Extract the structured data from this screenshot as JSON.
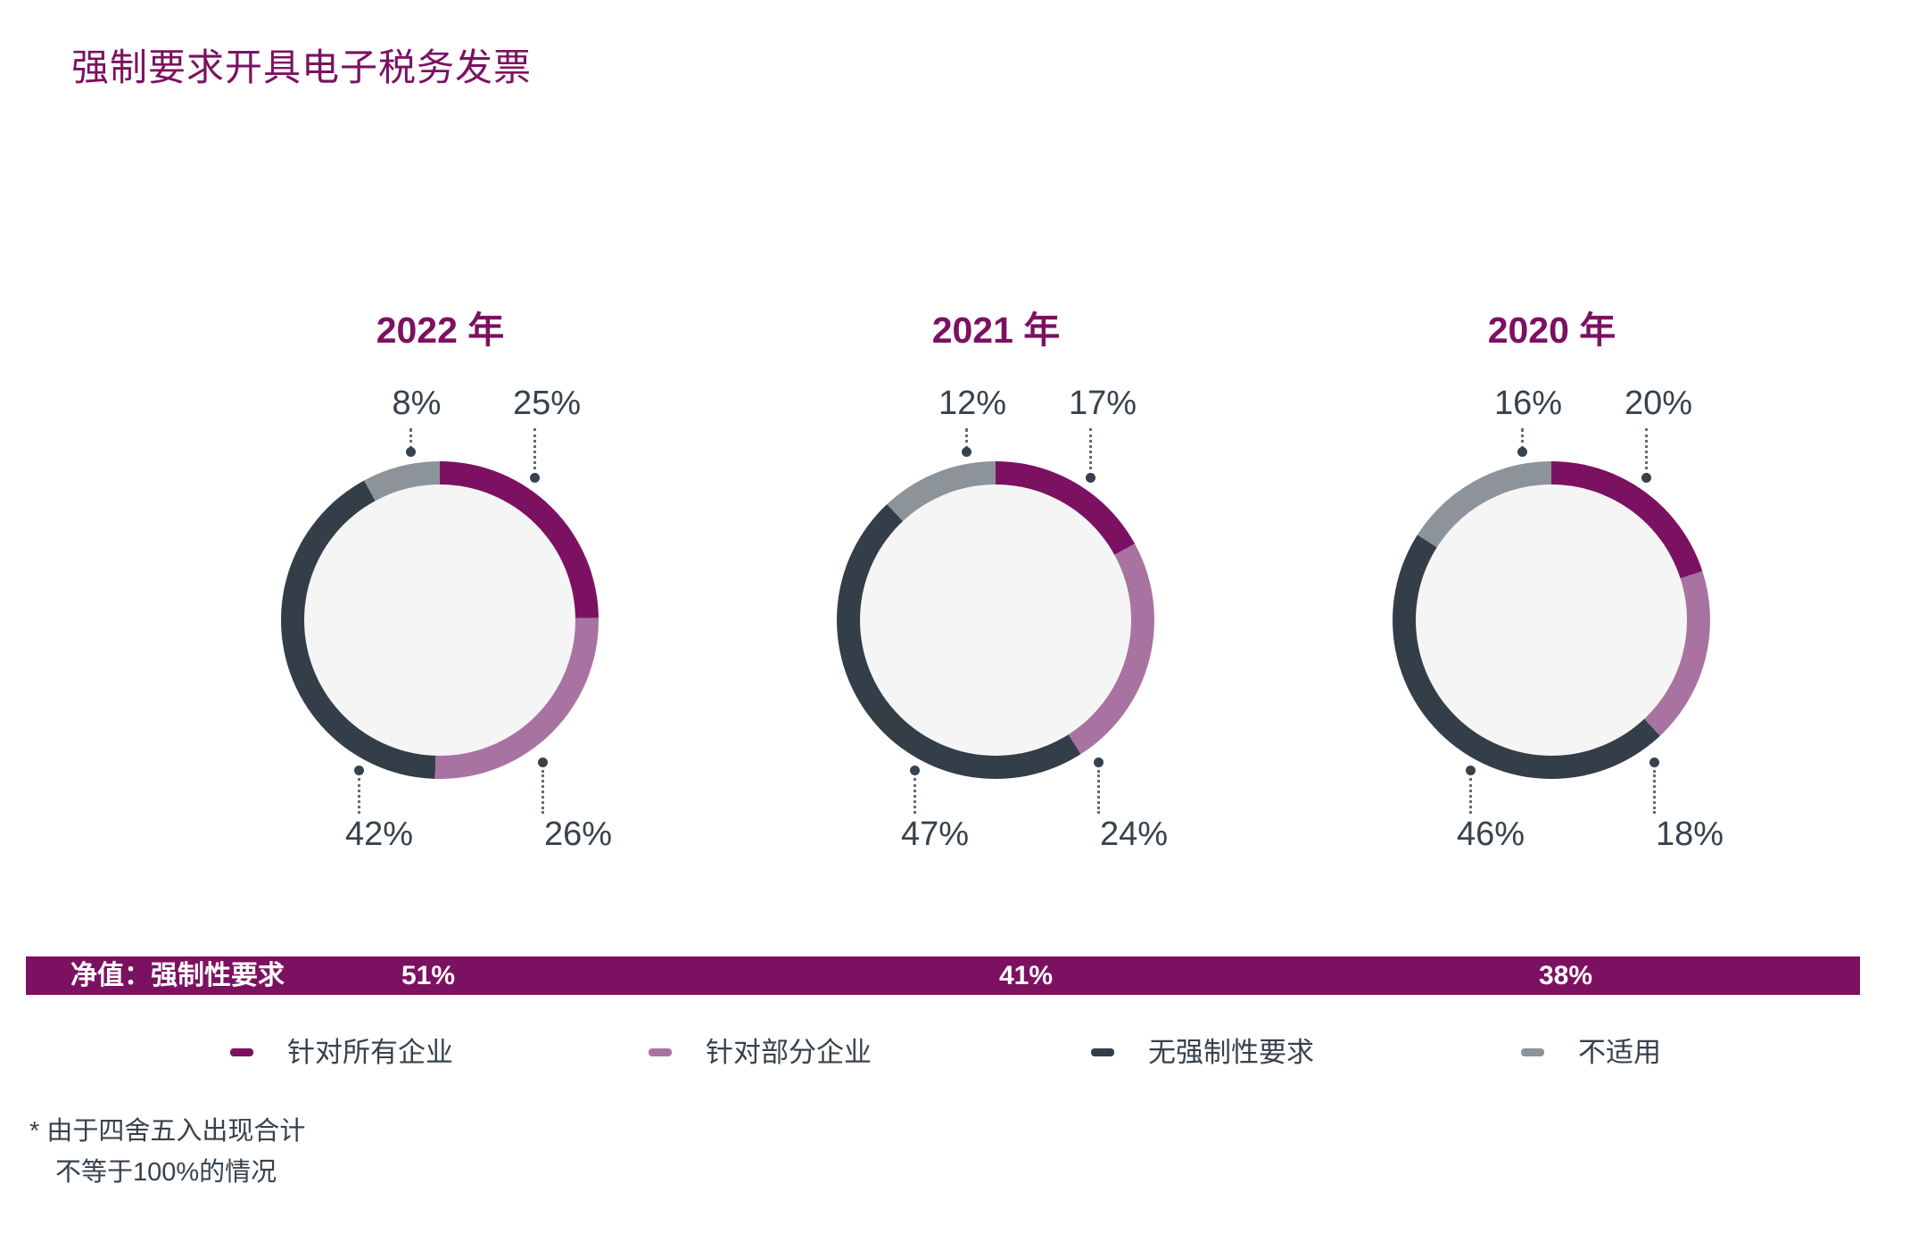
{
  "title": "强制要求开具电子税务发票",
  "chart_data": {
    "type": "pie",
    "subtype": "donut",
    "title": "强制要求开具电子税务发票",
    "legend_position": "bottom",
    "categories": [
      "针对所有企业",
      "针对部分企业",
      "无强制性要求",
      "不适用"
    ],
    "colors": [
      "#7C1161",
      "#A873A1",
      "#333E48",
      "#8C9399"
    ],
    "hole_color": "#F5F5F6",
    "charts": [
      {
        "label": "2022 年",
        "values": [
          25,
          26,
          42,
          8
        ],
        "value_labels": [
          "25%",
          "26%",
          "42%",
          "8%"
        ],
        "net_value": "51%"
      },
      {
        "label": "2021 年",
        "values": [
          17,
          24,
          47,
          12
        ],
        "value_labels": [
          "17%",
          "24%",
          "47%",
          "12%"
        ],
        "net_value": "41%"
      },
      {
        "label": "2020 年",
        "values": [
          20,
          18,
          46,
          16
        ],
        "value_labels": [
          "20%",
          "18%",
          "46%",
          "16%"
        ],
        "net_value": "38%"
      }
    ],
    "net_bar_label": "净值：强制性要求",
    "footnote": "* 由于四舍五入出现合计 不等于100%的情况"
  },
  "net_bar": {
    "label": "净值：强制性要求",
    "values": [
      "51%",
      "41%",
      "38%"
    ]
  },
  "legend": {
    "items": [
      {
        "label": "针对所有企业",
        "color": "#7C1161"
      },
      {
        "label": "针对部分企业",
        "color": "#A873A1"
      },
      {
        "label": "无强制性要求",
        "color": "#333E48"
      },
      {
        "label": "不适用",
        "color": "#8C9399"
      }
    ]
  },
  "footnote": {
    "line1": "* 由于四舍五入出现合计",
    "line2": "不等于100%的情况"
  }
}
